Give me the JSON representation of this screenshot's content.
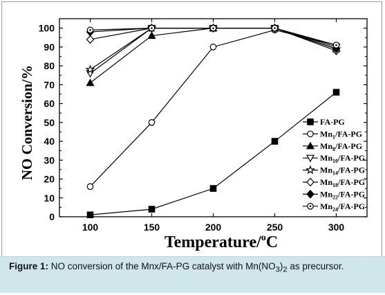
{
  "chart_data": {
    "type": "line",
    "xlabel": "Temperature/",
    "xlabel_unit_sup": "o",
    "xlabel_unit": "C",
    "ylabel": "NO Conversion/%",
    "xlim": [
      75,
      325
    ],
    "ylim": [
      0,
      105
    ],
    "xticks": [
      100,
      150,
      200,
      250,
      300
    ],
    "yticks": [
      0,
      10,
      20,
      30,
      40,
      50,
      60,
      70,
      80,
      90,
      100
    ],
    "legend_position": "lower-right",
    "series": [
      {
        "name": "FA-PG",
        "name_base": "FA-PG",
        "name_sub": "",
        "name_suffix": "",
        "marker": "square-filled",
        "x": [
          100,
          150,
          200,
          250,
          300
        ],
        "values": [
          1,
          4,
          15,
          40,
          66
        ]
      },
      {
        "name": "Mn1/FA-PG",
        "name_base": "Mn",
        "name_sub": "1",
        "name_suffix": "/FA-PG",
        "marker": "circle-open",
        "x": [
          100,
          150,
          200,
          250,
          300
        ],
        "values": [
          16,
          50,
          90,
          99,
          91
        ]
      },
      {
        "name": "Mn8/FA-PG",
        "name_base": "Mn",
        "name_sub": "8",
        "name_suffix": "/FA-PG",
        "marker": "triangle-up-filled",
        "x": [
          100,
          150,
          200,
          250,
          300
        ],
        "values": [
          71,
          96,
          100,
          100,
          89
        ]
      },
      {
        "name": "Mn10/FA-PG",
        "name_base": "Mn",
        "name_sub": "10",
        "name_suffix": "/FA-PG",
        "marker": "triangle-down-open",
        "x": [
          100,
          150,
          200,
          250,
          300
        ],
        "values": [
          76,
          100,
          100,
          100,
          90
        ]
      },
      {
        "name": "Mn14/FA-PG",
        "name_base": "Mn",
        "name_sub": "14",
        "name_suffix": "/FA-PG",
        "marker": "star-open",
        "x": [
          100,
          150,
          200,
          250,
          300
        ],
        "values": [
          78,
          100,
          100,
          100,
          89
        ]
      },
      {
        "name": "Mn18/FA-PG",
        "name_base": "Mn",
        "name_sub": "18",
        "name_suffix": "/FA-PG",
        "marker": "diamond-open",
        "x": [
          100,
          150,
          200,
          250,
          300
        ],
        "values": [
          94,
          100,
          100,
          100,
          88
        ]
      },
      {
        "name": "Mn22/FA-PG",
        "name_base": "Mn",
        "name_sub": "22",
        "name_suffix": "/FA-PG",
        "marker": "diamond-filled",
        "x": [
          100,
          150,
          200,
          250,
          300
        ],
        "values": [
          98,
          100,
          100,
          100,
          89
        ]
      },
      {
        "name": "Mn24/FA-PG",
        "name_base": "Mn",
        "name_sub": "24",
        "name_suffix": "/FA-PG",
        "marker": "circle-dot-open",
        "x": [
          100,
          150,
          200,
          250,
          300
        ],
        "values": [
          99,
          100,
          100,
          100,
          91
        ]
      }
    ]
  },
  "caption": {
    "label": "Figure 1:",
    "text_before": " NO conversion of the Mnx/FA-PG catalyst with Mn(NO",
    "sub1": "3",
    "text_mid": ")",
    "sub2": "2",
    "text_after": " as precursor."
  },
  "colors": {
    "caption_background": "#cfe6ea",
    "line": "#000000"
  }
}
